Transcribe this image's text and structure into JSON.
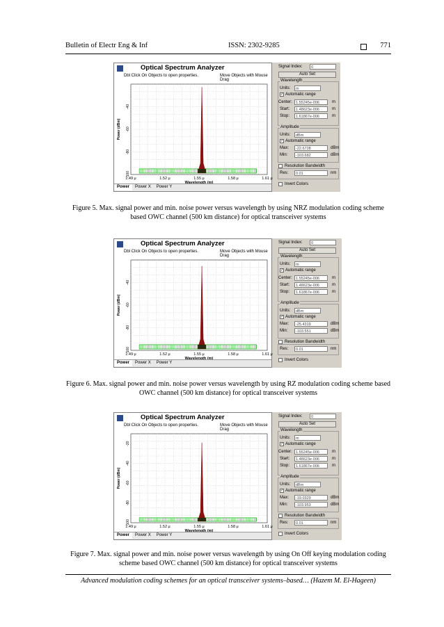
{
  "header": {
    "journal": "Bulletin of Electr Eng & Inf",
    "issn": "ISSN: 2302-9285",
    "page_number": "771"
  },
  "footer": {
    "text": "Advanced modulation coding schemes for an optical transceiver systems–based… (Hazem M. El-Hageen)"
  },
  "figures": [
    {
      "caption": "Figure 5. Max. signal power and min. noise power versus wavelength by using NRZ modulation coding scheme based OWC channel (500 km distance) for optical transceiver systems",
      "osa": {
        "title": "Optical Spectrum Analyzer",
        "hint1": "Dbl Click On Objects to open properties.",
        "hint2": "Move Objects with Mouse Drag",
        "y_axis_label": "Power (dBm)",
        "x_axis_label": "Wavelength (m)",
        "x_ticks": [
          "1.49 μ",
          "1.52 μ",
          "1.55 μ",
          "1.58 μ",
          "1.61 μ"
        ],
        "y_ticks": [
          "-40",
          "-60",
          "-80",
          "-100"
        ],
        "tabs": [
          "Power",
          "Power X",
          "Power Y"
        ],
        "signal_index": "0",
        "units_wavelength": "m",
        "center": "1.55245e-006",
        "start": "1.48623e-006",
        "stop": "1.61867e-006",
        "units_amp": "dBm",
        "max": "-22.6728",
        "min": "-103.682",
        "res": "0.01"
      },
      "chart_data": {
        "type": "line",
        "xlim": [
          1.49,
          1.61
        ],
        "ylim": [
          -100,
          -20
        ],
        "peak_dbm": -22.6728,
        "noise_floor_dbm": -95
      }
    },
    {
      "caption": "Figure 6. Max. signal power and min. noise power versus wavelength by using RZ modulation coding scheme based OWC channel (500 km distance) for optical transceiver systems",
      "osa": {
        "title": "Optical Spectrum Analyzer",
        "hint1": "Dbl Click On Objects to open properties.",
        "hint2": "Move Objects with Mouse Drag",
        "y_axis_label": "Power (dBm)",
        "x_axis_label": "Wavelength (m)",
        "x_ticks": [
          "1.49 μ",
          "1.52 μ",
          "1.55 μ",
          "1.58 μ",
          "1.61 μ"
        ],
        "y_ticks": [
          "-40",
          "-60",
          "-80",
          "-100"
        ],
        "tabs": [
          "Power",
          "Power X",
          "Power Y"
        ],
        "signal_index": "0",
        "units_wavelength": "m",
        "center": "1.55245e-006",
        "start": "1.48623e-006",
        "stop": "1.61867e-006",
        "units_amp": "dBm",
        "max": "-25.4319",
        "min": "-103.551",
        "res": "0.01"
      },
      "chart_data": {
        "type": "line",
        "xlim": [
          1.49,
          1.61
        ],
        "ylim": [
          -100,
          -20
        ],
        "peak_dbm": -25.4319,
        "noise_floor_dbm": -95
      }
    },
    {
      "caption": "Figure 7. Max. signal power and min. noise power versus wavelength by using On Off keying modulation coding scheme based OWC channel (500 km distance) for optical transceiver systems",
      "osa": {
        "title": "Optical Spectrum Analyzer",
        "hint1": "Dbl Click On Objects to open properties.",
        "hint2": "Move Objects with Mouse Drag",
        "y_axis_label": "Power (dBm)",
        "x_axis_label": "Wavelength (m)",
        "x_ticks": [
          "1.49 μ",
          "1.52 μ",
          "1.55 μ",
          "1.58 μ",
          "1.61 μ"
        ],
        "y_ticks": [
          "-20",
          "-40",
          "-60",
          "-80",
          "-100"
        ],
        "tabs": [
          "Power",
          "Power X",
          "Power Y"
        ],
        "signal_index": "0",
        "units_wavelength": "m",
        "center": "1.55245e-006",
        "start": "1.48623e-006",
        "stop": "1.61867e-006",
        "units_amp": "dBm",
        "max": "-19.0329",
        "min": "-103.953",
        "res": "0.01"
      },
      "chart_data": {
        "type": "line",
        "xlim": [
          1.49,
          1.61
        ],
        "ylim": [
          -100,
          -10
        ],
        "peak_dbm": -19.0329,
        "noise_floor_dbm": -95
      }
    }
  ],
  "labels": {
    "signal_index": "Signal Index:",
    "auto_set": "Auto Set",
    "wavelength": "Wavelength",
    "units": "Units:",
    "automatic_range": "Automatic range",
    "center": "Center:",
    "start": "Start:",
    "stop": "Stop:",
    "amplitude": "Amplitude",
    "max": "Max:",
    "min": "Min:",
    "unit_m": "m",
    "unit_dbm": "dBm",
    "resolution_bandwidth": "Resolution Bandwidth",
    "res": "Res:",
    "unit_nm": "nm",
    "invert_colors": "Invert Colors"
  }
}
